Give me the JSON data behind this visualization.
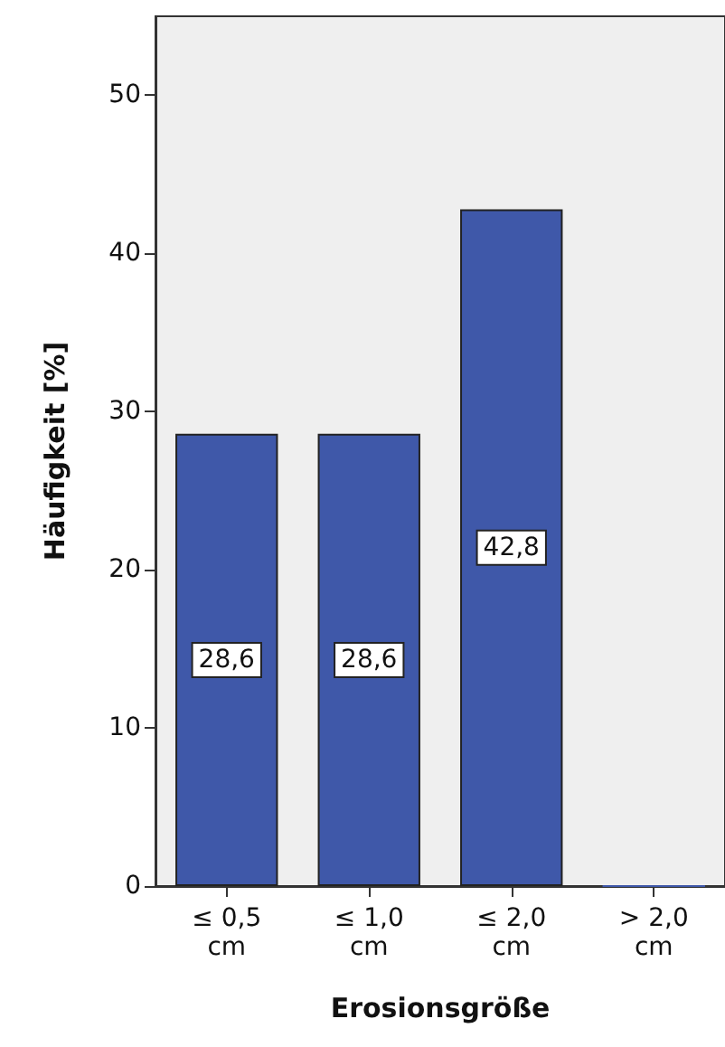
{
  "chart_data": {
    "type": "bar",
    "xlabel": "Erosionsgröße",
    "ylabel": "Häufigkeit [%]",
    "categories": [
      "≤ 0,5\ncm",
      "≤ 1,0\ncm",
      "≤ 2,0\ncm",
      "> 2,0\ncm"
    ],
    "values": [
      28.6,
      28.6,
      42.8,
      0
    ],
    "value_labels": [
      "28,6",
      "28,6",
      "42,8",
      null
    ],
    "color": "#3f58a9",
    "ylim": [
      0,
      55
    ],
    "yticks": [
      0,
      10,
      20,
      30,
      40,
      50
    ],
    "grid": false
  }
}
